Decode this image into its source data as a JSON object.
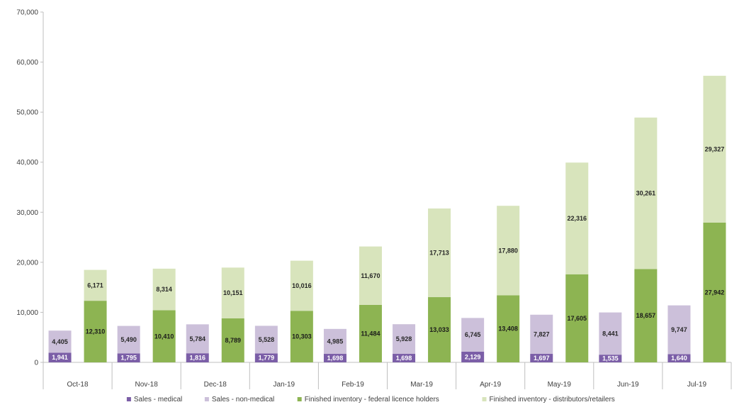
{
  "chart_data": {
    "type": "bar",
    "stacked_groups": true,
    "title": "",
    "xlabel": "",
    "ylabel": "",
    "ylim": [
      0,
      70000
    ],
    "y_ticks": [
      "0",
      "10,000",
      "20,000",
      "30,000",
      "40,000",
      "50,000",
      "60,000",
      "70,000"
    ],
    "categories": [
      "Oct-18",
      "Nov-18",
      "Dec-18",
      "Jan-19",
      "Feb-19",
      "Mar-19",
      "Apr-19",
      "May-19",
      "Jun-19",
      "Jul-19"
    ],
    "series": [
      {
        "name": "Sales - medical",
        "stack": "sales",
        "color": "#7B5EA7",
        "label_color": "#ffffff",
        "values": [
          1941,
          1795,
          1816,
          1779,
          1698,
          1698,
          2129,
          1697,
          1535,
          1640
        ],
        "labels": [
          "1,941",
          "1,795",
          "1,816",
          "1,779",
          "1,698",
          "1,698",
          "2,129",
          "1,697",
          "1,535",
          "1,640"
        ]
      },
      {
        "name": "Sales - non-medical",
        "stack": "sales",
        "color": "#CCC0DA",
        "label_color": "#262626",
        "values": [
          4405,
          5490,
          5784,
          5528,
          4985,
          5928,
          6745,
          7827,
          8441,
          9747
        ],
        "labels": [
          "4,405",
          "5,490",
          "5,784",
          "5,528",
          "4,985",
          "5,928",
          "6,745",
          "7,827",
          "8,441",
          "9,747"
        ]
      },
      {
        "name": "Finished inventory - federal licence holders",
        "stack": "inventory",
        "color": "#8DB452",
        "label_color": "#1a1a1a",
        "values": [
          12310,
          10410,
          8789,
          10303,
          11484,
          13033,
          13408,
          17605,
          18657,
          27942
        ],
        "labels": [
          "12,310",
          "10,410",
          "8,789",
          "10,303",
          "11,484",
          "13,033",
          "13,408",
          "17,605",
          "18,657",
          "27,942"
        ]
      },
      {
        "name": "Finished inventory - distributors/retailers",
        "stack": "inventory",
        "color": "#D8E4BC",
        "label_color": "#262626",
        "values": [
          6171,
          8314,
          10151,
          10016,
          11670,
          17713,
          17880,
          22316,
          30261,
          29327
        ],
        "labels": [
          "6,171",
          "8,314",
          "10,151",
          "10,016",
          "11,670",
          "17,713",
          "17,880",
          "22,316",
          "30,261",
          "29,327"
        ]
      }
    ],
    "legend_position": "bottom",
    "grid": false
  }
}
